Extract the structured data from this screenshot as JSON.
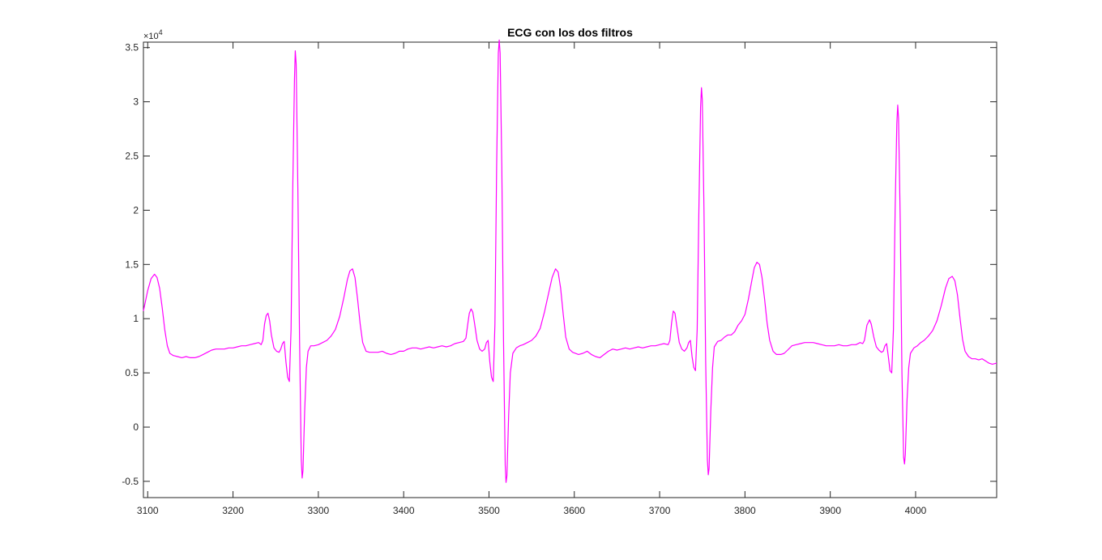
{
  "chart_data": {
    "type": "line",
    "title": "ECG con los dos filtros",
    "xlabel": "",
    "ylabel": "",
    "xlim": [
      3095,
      4095
    ],
    "ylim": [
      -6500,
      35500
    ],
    "y_multiplier": "×10",
    "y_multiplier_exponent": "4",
    "x_ticks": [
      3100,
      3200,
      3300,
      3400,
      3500,
      3600,
      3700,
      3800,
      3900,
      4000
    ],
    "x_tick_labels": [
      "3100",
      "3200",
      "3300",
      "3400",
      "3500",
      "3600",
      "3700",
      "3800",
      "3900",
      "4000"
    ],
    "y_ticks": [
      -5000,
      0,
      5000,
      10000,
      15000,
      20000,
      25000,
      30000,
      35000
    ],
    "y_tick_labels": [
      "-0.5",
      "0",
      "0.5",
      "1",
      "1.5",
      "2",
      "2.5",
      "3",
      "3.5"
    ],
    "grid": false,
    "series": [
      {
        "color": "#ff00ff",
        "points": [
          [
            3095,
            10700
          ],
          [
            3100,
            12600
          ],
          [
            3104,
            13700
          ],
          [
            3108,
            14100
          ],
          [
            3111,
            13800
          ],
          [
            3114,
            12800
          ],
          [
            3117,
            11000
          ],
          [
            3120,
            9000
          ],
          [
            3123,
            7500
          ],
          [
            3126,
            6800
          ],
          [
            3130,
            6600
          ],
          [
            3135,
            6500
          ],
          [
            3140,
            6400
          ],
          [
            3145,
            6500
          ],
          [
            3150,
            6400
          ],
          [
            3155,
            6400
          ],
          [
            3160,
            6500
          ],
          [
            3165,
            6700
          ],
          [
            3170,
            6900
          ],
          [
            3175,
            7100
          ],
          [
            3180,
            7200
          ],
          [
            3190,
            7200
          ],
          [
            3195,
            7300
          ],
          [
            3200,
            7300
          ],
          [
            3205,
            7400
          ],
          [
            3210,
            7500
          ],
          [
            3215,
            7500
          ],
          [
            3220,
            7600
          ],
          [
            3225,
            7700
          ],
          [
            3230,
            7800
          ],
          [
            3233,
            7600
          ],
          [
            3235,
            8000
          ],
          [
            3237,
            9500
          ],
          [
            3239,
            10300
          ],
          [
            3241,
            10500
          ],
          [
            3243,
            9800
          ],
          [
            3245,
            8500
          ],
          [
            3248,
            7300
          ],
          [
            3251,
            7000
          ],
          [
            3254,
            6900
          ],
          [
            3256,
            7200
          ],
          [
            3258,
            7700
          ],
          [
            3260,
            7900
          ],
          [
            3262,
            6000
          ],
          [
            3264,
            4600
          ],
          [
            3266,
            4200
          ],
          [
            3268,
            9000
          ],
          [
            3270,
            22000
          ],
          [
            3272,
            32000
          ],
          [
            3273,
            34700
          ],
          [
            3274,
            33500
          ],
          [
            3276,
            22000
          ],
          [
            3278,
            8000
          ],
          [
            3280,
            -3000
          ],
          [
            3281,
            -4700
          ],
          [
            3282,
            -4000
          ],
          [
            3284,
            1500
          ],
          [
            3286,
            5500
          ],
          [
            3288,
            7000
          ],
          [
            3291,
            7500
          ],
          [
            3295,
            7500
          ],
          [
            3300,
            7600
          ],
          [
            3305,
            7800
          ],
          [
            3310,
            8000
          ],
          [
            3315,
            8400
          ],
          [
            3320,
            9000
          ],
          [
            3325,
            10200
          ],
          [
            3330,
            12000
          ],
          [
            3334,
            13600
          ],
          [
            3337,
            14400
          ],
          [
            3340,
            14600
          ],
          [
            3343,
            13800
          ],
          [
            3346,
            11800
          ],
          [
            3349,
            9500
          ],
          [
            3352,
            7800
          ],
          [
            3356,
            7000
          ],
          [
            3360,
            6900
          ],
          [
            3370,
            6900
          ],
          [
            3375,
            7000
          ],
          [
            3380,
            6800
          ],
          [
            3385,
            6700
          ],
          [
            3390,
            6800
          ],
          [
            3395,
            7000
          ],
          [
            3400,
            7000
          ],
          [
            3405,
            7200
          ],
          [
            3410,
            7300
          ],
          [
            3415,
            7300
          ],
          [
            3420,
            7200
          ],
          [
            3425,
            7300
          ],
          [
            3430,
            7400
          ],
          [
            3435,
            7300
          ],
          [
            3440,
            7400
          ],
          [
            3445,
            7500
          ],
          [
            3450,
            7400
          ],
          [
            3455,
            7500
          ],
          [
            3460,
            7700
          ],
          [
            3465,
            7800
          ],
          [
            3470,
            7900
          ],
          [
            3473,
            8200
          ],
          [
            3475,
            9400
          ],
          [
            3477,
            10500
          ],
          [
            3479,
            10900
          ],
          [
            3481,
            10600
          ],
          [
            3483,
            9600
          ],
          [
            3486,
            8000
          ],
          [
            3489,
            7200
          ],
          [
            3492,
            7000
          ],
          [
            3495,
            7200
          ],
          [
            3497,
            7800
          ],
          [
            3499,
            8000
          ],
          [
            3501,
            6000
          ],
          [
            3503,
            4600
          ],
          [
            3505,
            4200
          ],
          [
            3507,
            9500
          ],
          [
            3509,
            24000
          ],
          [
            3511,
            34500
          ],
          [
            3512,
            35700
          ],
          [
            3513,
            34500
          ],
          [
            3515,
            24000
          ],
          [
            3517,
            8000
          ],
          [
            3519,
            -3500
          ],
          [
            3520,
            -5100
          ],
          [
            3521,
            -4500
          ],
          [
            3523,
            1000
          ],
          [
            3525,
            5000
          ],
          [
            3528,
            6800
          ],
          [
            3532,
            7300
          ],
          [
            3536,
            7500
          ],
          [
            3540,
            7600
          ],
          [
            3545,
            7800
          ],
          [
            3550,
            8000
          ],
          [
            3555,
            8400
          ],
          [
            3560,
            9100
          ],
          [
            3565,
            10600
          ],
          [
            3570,
            12400
          ],
          [
            3574,
            13800
          ],
          [
            3578,
            14600
          ],
          [
            3581,
            14300
          ],
          [
            3584,
            12800
          ],
          [
            3587,
            10400
          ],
          [
            3590,
            8300
          ],
          [
            3594,
            7200
          ],
          [
            3598,
            6900
          ],
          [
            3605,
            6700
          ],
          [
            3610,
            6800
          ],
          [
            3615,
            7000
          ],
          [
            3620,
            6700
          ],
          [
            3625,
            6500
          ],
          [
            3630,
            6400
          ],
          [
            3635,
            6700
          ],
          [
            3640,
            7000
          ],
          [
            3645,
            7200
          ],
          [
            3650,
            7100
          ],
          [
            3655,
            7200
          ],
          [
            3660,
            7300
          ],
          [
            3665,
            7200
          ],
          [
            3670,
            7300
          ],
          [
            3675,
            7400
          ],
          [
            3680,
            7300
          ],
          [
            3685,
            7400
          ],
          [
            3690,
            7500
          ],
          [
            3695,
            7500
          ],
          [
            3700,
            7600
          ],
          [
            3705,
            7700
          ],
          [
            3710,
            7600
          ],
          [
            3712,
            8000
          ],
          [
            3714,
            9600
          ],
          [
            3716,
            10700
          ],
          [
            3718,
            10500
          ],
          [
            3720,
            9400
          ],
          [
            3723,
            7800
          ],
          [
            3726,
            7200
          ],
          [
            3729,
            7000
          ],
          [
            3732,
            7300
          ],
          [
            3734,
            7800
          ],
          [
            3736,
            8000
          ],
          [
            3738,
            6500
          ],
          [
            3740,
            5500
          ],
          [
            3742,
            5200
          ],
          [
            3744,
            9000
          ],
          [
            3746,
            20000
          ],
          [
            3748,
            29500
          ],
          [
            3749,
            31300
          ],
          [
            3750,
            30200
          ],
          [
            3752,
            20000
          ],
          [
            3754,
            6000
          ],
          [
            3756,
            -3000
          ],
          [
            3757,
            -4400
          ],
          [
            3758,
            -3800
          ],
          [
            3760,
            1500
          ],
          [
            3762,
            5500
          ],
          [
            3764,
            7400
          ],
          [
            3768,
            7900
          ],
          [
            3772,
            8000
          ],
          [
            3776,
            8300
          ],
          [
            3780,
            8500
          ],
          [
            3784,
            8500
          ],
          [
            3788,
            8800
          ],
          [
            3792,
            9400
          ],
          [
            3796,
            9800
          ],
          [
            3800,
            10400
          ],
          [
            3804,
            11800
          ],
          [
            3808,
            13500
          ],
          [
            3811,
            14700
          ],
          [
            3814,
            15200
          ],
          [
            3817,
            15000
          ],
          [
            3820,
            13800
          ],
          [
            3823,
            11800
          ],
          [
            3826,
            9600
          ],
          [
            3829,
            8000
          ],
          [
            3833,
            7000
          ],
          [
            3837,
            6700
          ],
          [
            3842,
            6700
          ],
          [
            3846,
            6800
          ],
          [
            3850,
            7100
          ],
          [
            3855,
            7500
          ],
          [
            3860,
            7600
          ],
          [
            3865,
            7700
          ],
          [
            3870,
            7800
          ],
          [
            3875,
            7800
          ],
          [
            3880,
            7800
          ],
          [
            3885,
            7700
          ],
          [
            3890,
            7600
          ],
          [
            3895,
            7500
          ],
          [
            3900,
            7500
          ],
          [
            3905,
            7500
          ],
          [
            3910,
            7600
          ],
          [
            3915,
            7500
          ],
          [
            3920,
            7500
          ],
          [
            3925,
            7600
          ],
          [
            3930,
            7600
          ],
          [
            3935,
            7800
          ],
          [
            3938,
            7700
          ],
          [
            3940,
            8000
          ],
          [
            3943,
            9400
          ],
          [
            3946,
            9900
          ],
          [
            3948,
            9500
          ],
          [
            3951,
            8300
          ],
          [
            3954,
            7400
          ],
          [
            3957,
            7100
          ],
          [
            3960,
            6900
          ],
          [
            3962,
            7000
          ],
          [
            3964,
            7500
          ],
          [
            3966,
            7700
          ],
          [
            3968,
            6500
          ],
          [
            3970,
            5200
          ],
          [
            3972,
            5000
          ],
          [
            3974,
            9000
          ],
          [
            3976,
            20000
          ],
          [
            3978,
            28000
          ],
          [
            3979,
            29700
          ],
          [
            3980,
            28500
          ],
          [
            3982,
            19000
          ],
          [
            3984,
            5000
          ],
          [
            3986,
            -2800
          ],
          [
            3987,
            -3400
          ],
          [
            3988,
            -2500
          ],
          [
            3990,
            2500
          ],
          [
            3992,
            5500
          ],
          [
            3994,
            6800
          ],
          [
            3998,
            7300
          ],
          [
            4002,
            7500
          ],
          [
            4006,
            7800
          ],
          [
            4010,
            8000
          ],
          [
            4015,
            8400
          ],
          [
            4020,
            8900
          ],
          [
            4025,
            9800
          ],
          [
            4030,
            11200
          ],
          [
            4035,
            12800
          ],
          [
            4039,
            13700
          ],
          [
            4043,
            13900
          ],
          [
            4046,
            13500
          ],
          [
            4049,
            12200
          ],
          [
            4052,
            10100
          ],
          [
            4055,
            8100
          ],
          [
            4058,
            7000
          ],
          [
            4062,
            6500
          ],
          [
            4066,
            6300
          ],
          [
            4070,
            6300
          ],
          [
            4074,
            6200
          ],
          [
            4078,
            6300
          ],
          [
            4082,
            6100
          ],
          [
            4086,
            5900
          ],
          [
            4090,
            5800
          ],
          [
            4095,
            5900
          ]
        ]
      }
    ]
  }
}
